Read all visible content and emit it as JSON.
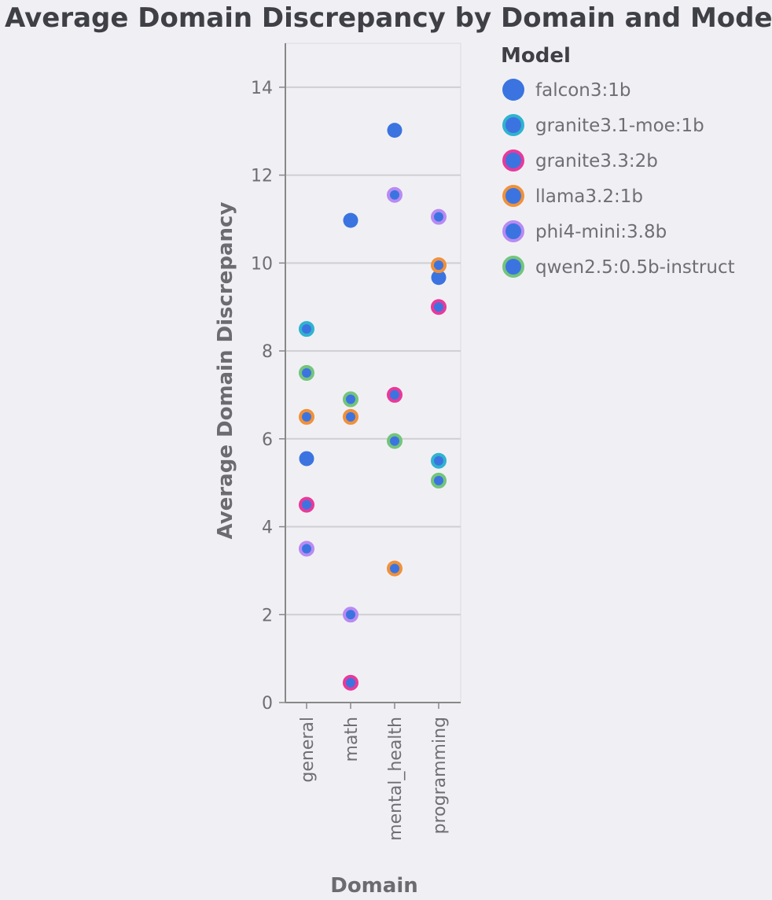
{
  "chart_data": {
    "type": "scatter",
    "title": "Average Domain Discrepancy by Domain and Model",
    "xlabel": "Domain",
    "ylabel": "Average Domain Discrepancy",
    "ylim": [
      0,
      15
    ],
    "yticks": [
      0,
      2,
      4,
      6,
      8,
      10,
      12,
      14
    ],
    "grid": true,
    "legend_title": "Model",
    "legend_position": "right",
    "categories": [
      "general",
      "math",
      "mental_health",
      "programming"
    ],
    "fill_color": "#3b74e0",
    "series": [
      {
        "name": "falcon3:1b",
        "color": "#3b74e0",
        "values": [
          5.55,
          10.97,
          13.02,
          9.67
        ]
      },
      {
        "name": "granite3.1-moe:1b",
        "color": "#2fb3cf",
        "values": [
          8.5,
          null,
          null,
          5.5
        ]
      },
      {
        "name": "granite3.3:2b",
        "color": "#e8399a",
        "values": [
          4.5,
          0.45,
          7.0,
          9.0
        ]
      },
      {
        "name": "llama3.2:1b",
        "color": "#f0913a",
        "values": [
          6.5,
          6.5,
          3.05,
          9.95
        ]
      },
      {
        "name": "phi4-mini:3.8b",
        "color": "#b98af2",
        "values": [
          3.5,
          2.0,
          11.55,
          11.05
        ]
      },
      {
        "name": "qwen2.5:0.5b-instruct",
        "color": "#74c47c",
        "values": [
          7.5,
          6.9,
          5.95,
          5.05
        ]
      }
    ]
  }
}
